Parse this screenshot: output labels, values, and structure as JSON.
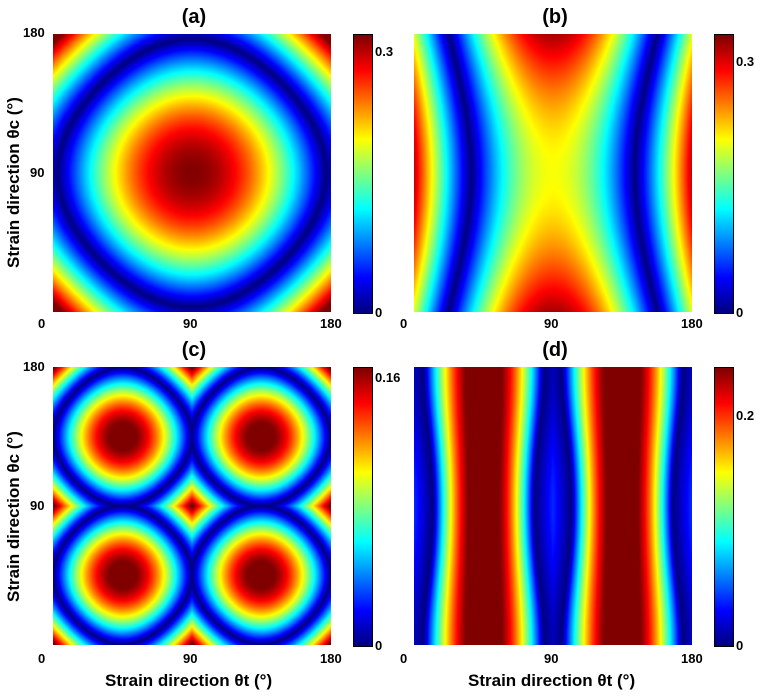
{
  "chart_data": [
    {
      "type": "heatmap",
      "panel": "(a)",
      "x": {
        "ticks": [
          "0",
          "90",
          "180"
        ],
        "range": [
          0,
          180
        ]
      },
      "y": {
        "ticks": [
          "0",
          "90",
          "180"
        ],
        "range": [
          0,
          180
        ]
      },
      "ylabel": "Strain direction θc (°)",
      "colorbar": {
        "range": [
          0,
          0.32
        ],
        "ticks": [
          "0",
          "0.3"
        ],
        "colormap": "jet"
      },
      "pattern": "peaks at (90,90) ≈0.3 and corners ≈0.32; diamond-shaped zero contour"
    },
    {
      "type": "heatmap",
      "panel": "(b)",
      "x": {
        "ticks": [
          "0",
          "90",
          "180"
        ],
        "range": [
          0,
          180
        ]
      },
      "y": {
        "ticks": [],
        "range": [
          0,
          180
        ]
      },
      "colorbar": {
        "range": [
          0,
          0.32
        ],
        "ticks": [
          "0",
          "0.3"
        ],
        "colormap": "jet"
      },
      "pattern": "vertically elongated peak at center, peaks at left/right edges near top and bottom"
    },
    {
      "type": "heatmap",
      "panel": "(c)",
      "x": {
        "ticks": [
          "0",
          "90",
          "180"
        ],
        "range": [
          0,
          180
        ]
      },
      "y": {
        "ticks": [
          "0",
          "90",
          "180"
        ],
        "range": [
          0,
          180
        ]
      },
      "xlabel": "Strain direction θt (°)",
      "ylabel": "Strain direction θc (°)",
      "colorbar": {
        "range": [
          0,
          0.17
        ],
        "ticks": [
          "0",
          "0.16"
        ],
        "colormap": "jet"
      },
      "pattern": "lens-shaped peaks along vertical and horizontal center lines, star-shaped zero contours"
    },
    {
      "type": "heatmap",
      "panel": "(d)",
      "x": {
        "ticks": [
          "0",
          "90",
          "180"
        ],
        "range": [
          0,
          180
        ]
      },
      "y": {
        "ticks": [],
        "range": [
          0,
          180
        ]
      },
      "xlabel": "Strain direction θt (°)",
      "colorbar": {
        "range": [
          0,
          0.24
        ],
        "ticks": [
          "0",
          "0.2"
        ],
        "colormap": "jet"
      },
      "pattern": "peaks at θt≈45 and 135 at θc=0, 90, 180; zero contours near θt=0, 90, 180"
    }
  ],
  "panels": [
    {
      "title": "(a)"
    },
    {
      "title": "(b)"
    },
    {
      "title": "(c)"
    },
    {
      "title": "(d)"
    }
  ]
}
